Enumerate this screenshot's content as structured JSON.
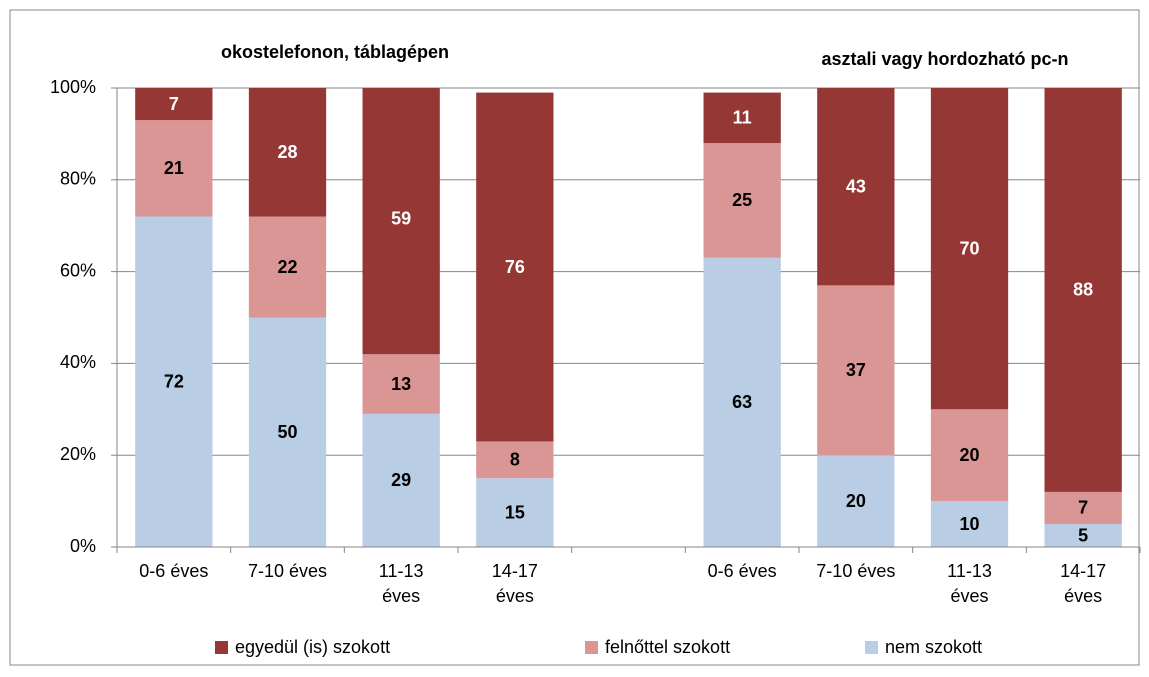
{
  "chart_data": {
    "type": "stacked_bar",
    "annotations": [
      "okostelefonon, táblagépen",
      "asztali vagy hordozható pc-n"
    ],
    "categories": [
      "0-6 éves",
      "7-10 éves",
      "11-13\néves",
      "14-17\néves",
      null,
      "0-6 éves",
      "7-10 éves",
      "11-13\néves",
      "14-17\néves"
    ],
    "series": [
      {
        "name": "egyedül (is) szokott",
        "color": "#953735",
        "values": [
          7,
          28,
          59,
          76,
          null,
          11,
          43,
          70,
          88
        ]
      },
      {
        "name": "felnőttel szokott",
        "color": "#d99694",
        "values": [
          21,
          22,
          13,
          8,
          null,
          25,
          37,
          20,
          7
        ]
      },
      {
        "name": "nem szokott",
        "color": "#b9cde5",
        "values": [
          72,
          50,
          29,
          15,
          null,
          63,
          20,
          10,
          5
        ]
      }
    ],
    "ylim": [
      0,
      100
    ],
    "yticks": [
      {
        "value": 0,
        "label": "0%"
      },
      {
        "value": 20,
        "label": "20%"
      },
      {
        "value": 40,
        "label": "40%"
      },
      {
        "value": 60,
        "label": "60%"
      },
      {
        "value": 80,
        "label": "80%"
      },
      {
        "value": 100,
        "label": "100%"
      }
    ],
    "grid": true,
    "legend": "bottom"
  }
}
